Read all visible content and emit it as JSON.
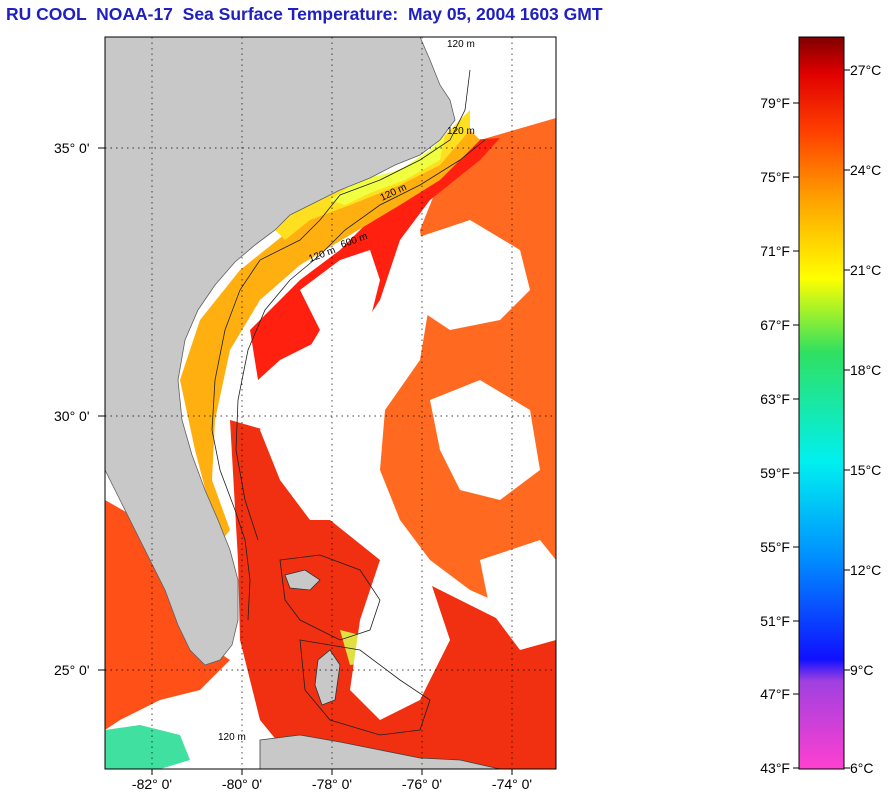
{
  "title": "RU COOL  NOAA-17  Sea Surface Temperature:  May 05, 2004 1603 GMT",
  "map": {
    "lat_labels": [
      "35° 0'",
      "30° 0'",
      "25° 0'"
    ],
    "lon_labels": [
      "-82° 0'",
      "-80° 0'",
      "-78° 0'",
      "-76° 0'",
      "-74° 0'"
    ],
    "contour_labels": [
      "120 m",
      "120 m",
      "120 m",
      "120 m",
      "600 m",
      "120 m"
    ],
    "colors": {
      "land": "#c8c8c8",
      "cloud": "#ffffff",
      "warm": "#ff3010",
      "shelf": "#ffb000"
    }
  },
  "colorbar": {
    "fahrenheit_labels": [
      "79°F",
      "75°F",
      "71°F",
      "67°F",
      "63°F",
      "59°F",
      "55°F",
      "51°F",
      "47°F",
      "43°F"
    ],
    "celsius_labels": [
      "27°C",
      "24°C",
      "21°C",
      "18°C",
      "15°C",
      "12°C",
      "9°C",
      "6°C"
    ],
    "range_celsius": [
      6,
      28
    ]
  }
}
